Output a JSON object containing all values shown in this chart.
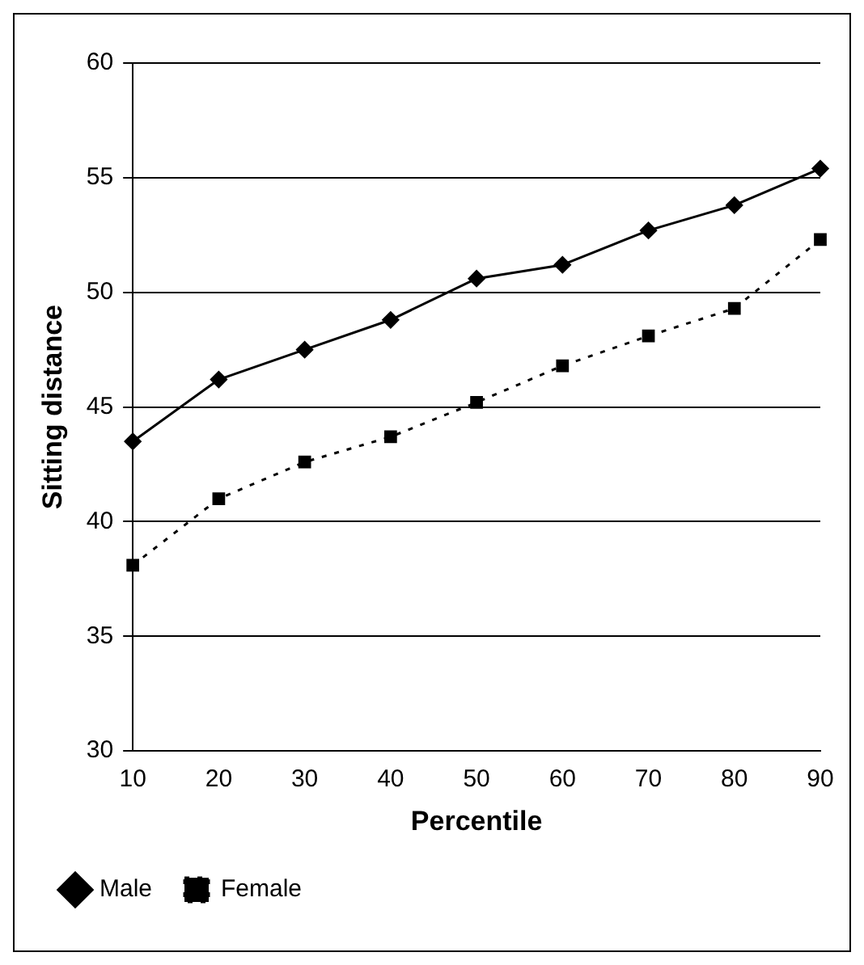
{
  "chart_data": {
    "type": "line",
    "xlabel": "Percentile",
    "ylabel": "Sitting distance",
    "categories": [
      "10",
      "20",
      "30",
      "40",
      "50",
      "60",
      "70",
      "80",
      "90"
    ],
    "series": [
      {
        "name": "Male",
        "color": "#000000",
        "marker": "diamond",
        "line_style": "solid",
        "values": [
          43.5,
          46.2,
          47.5,
          48.8,
          50.6,
          51.2,
          52.7,
          53.8,
          55.4
        ]
      },
      {
        "name": "Female",
        "color": "#000000",
        "marker": "square",
        "line_style": "dotted",
        "values": [
          38.1,
          41.0,
          42.6,
          43.7,
          45.2,
          46.8,
          48.1,
          49.3,
          52.3
        ]
      }
    ],
    "ylim": [
      30,
      60
    ],
    "yticks": [
      30,
      35,
      40,
      45,
      50,
      55,
      60
    ],
    "grid": "y",
    "legend": "bottom left"
  }
}
